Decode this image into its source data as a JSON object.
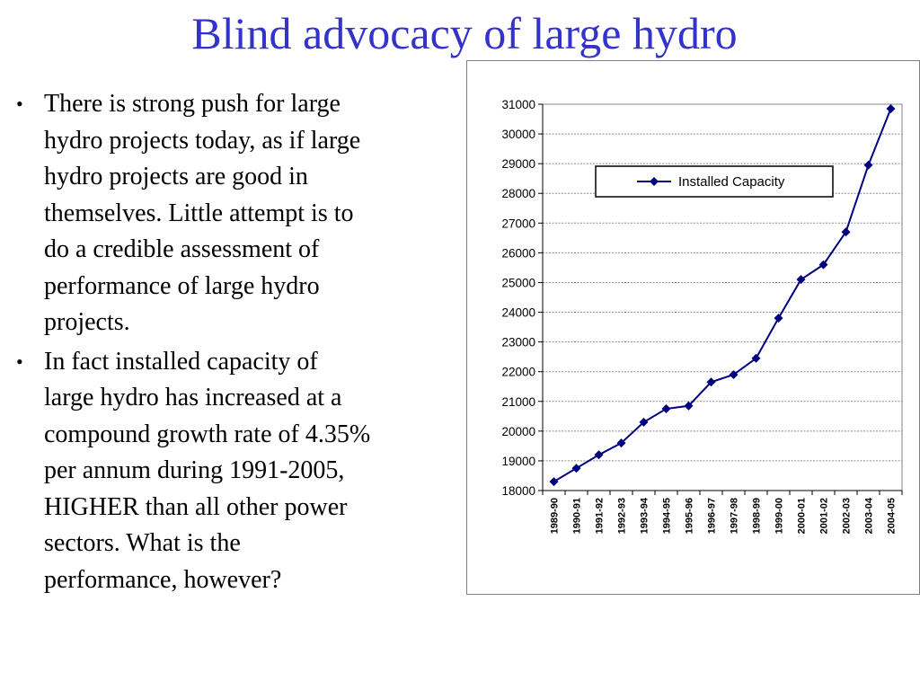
{
  "slide": {
    "title": "Blind advocacy of large hydro",
    "title_color": "#3333cc",
    "bullet_symbol": "•",
    "bullets": [
      [
        "There is strong push for large",
        "hydro projects today, as if large",
        "hydro projects are good in",
        "themselves. Little attempt is to",
        "do a credible assessment of",
        "performance of large hydro",
        "projects."
      ],
      [
        "In fact installed capacity of",
        "large hydro has increased at a",
        "compound growth rate of 4.35%",
        "per annum during 1991-2005,",
        "HIGHER than all other power",
        "sectors. What is the",
        "performance, however?"
      ]
    ]
  },
  "chart_data": {
    "type": "line",
    "title": "",
    "xlabel": "",
    "ylabel": "",
    "categories": [
      "1989-90",
      "1990-91",
      "1991-92",
      "1992-93",
      "1993-94",
      "1994-95",
      "1995-96",
      "1996-97",
      "1997-98",
      "1998-99",
      "1999-00",
      "2000-01",
      "2001-02",
      "2002-03",
      "2003-04",
      "2004-05"
    ],
    "series": [
      {
        "name": "Installed Capacity",
        "color": "#000080",
        "marker": "diamond",
        "values": [
          18300,
          18750,
          19200,
          19600,
          20300,
          20750,
          20850,
          21650,
          21900,
          22450,
          23800,
          25100,
          25600,
          26700,
          28950,
          30850
        ]
      }
    ],
    "ylim": [
      18000,
      31000
    ],
    "yticks": [
      18000,
      19000,
      20000,
      21000,
      22000,
      23000,
      24000,
      25000,
      26000,
      27000,
      28000,
      29000,
      30000,
      31000
    ],
    "grid": true,
    "legend_position": "top-center",
    "plot_background": "#ffffff",
    "frame_border_color": "#808080"
  }
}
